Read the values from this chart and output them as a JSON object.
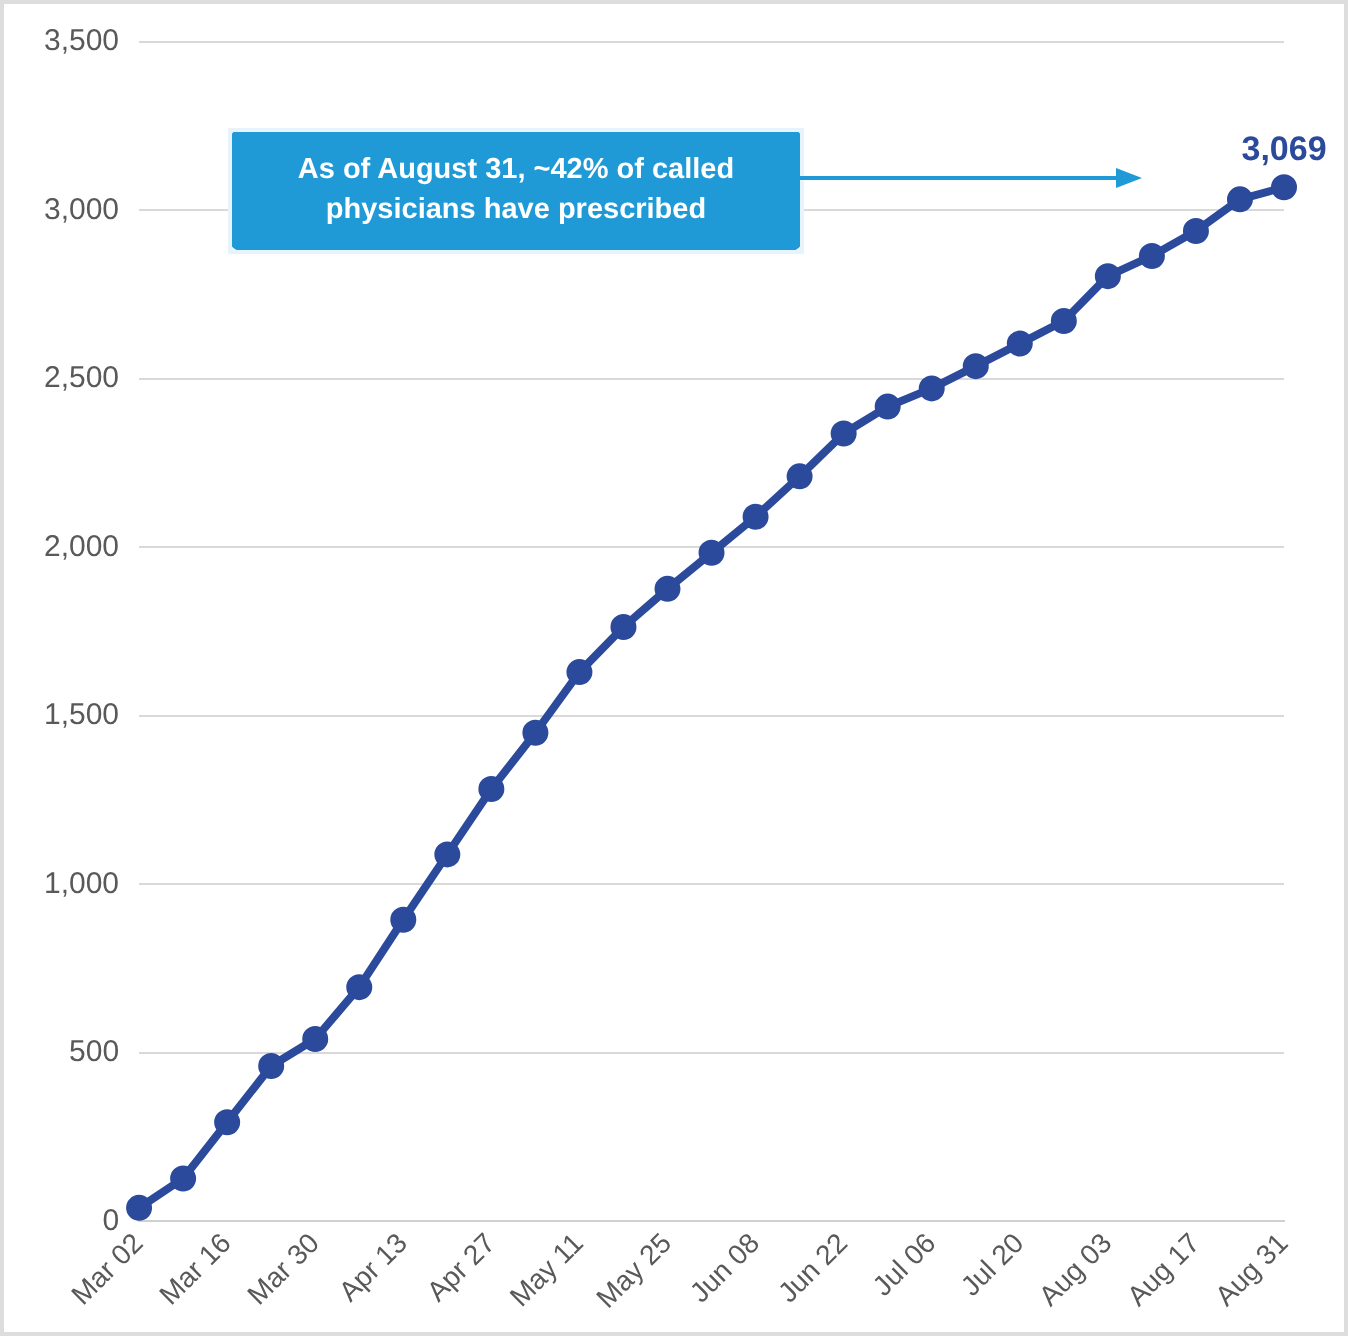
{
  "chart_data": {
    "type": "line",
    "categories": [
      "Mar 02",
      null,
      "Mar 16",
      null,
      "Mar 30",
      null,
      "Apr 13",
      null,
      "Apr 27",
      null,
      "May 11",
      null,
      "May 25",
      null,
      "Jun 08",
      null,
      "Jun 22",
      null,
      "Jul 06",
      null,
      "Jul 20",
      null,
      "Aug 03",
      null,
      "Aug 17",
      null,
      "Aug 31"
    ],
    "series": [
      {
        "color": "#2b4a9b",
        "values": [
          40,
          127,
          294,
          461,
          541,
          695,
          895,
          1089,
          1283,
          1450,
          1630,
          1764,
          1877,
          1984,
          2091,
          2211,
          2338,
          2418,
          2472,
          2538,
          2605,
          2672,
          2805,
          2865,
          2939,
          3033,
          3069
        ],
        "value_labels": [
          null,
          null,
          null,
          null,
          null,
          null,
          null,
          null,
          null,
          null,
          null,
          null,
          null,
          null,
          null,
          null,
          null,
          null,
          null,
          null,
          null,
          null,
          null,
          null,
          null,
          null,
          "3,069"
        ]
      }
    ],
    "ylim": [
      0,
      3500
    ],
    "yticks": [
      0,
      500,
      {
        "value": 1000,
        "label": "1,000"
      },
      {
        "value": 1500,
        "label": "1,500"
      },
      {
        "value": 2000,
        "label": "2,000"
      },
      {
        "value": 2500,
        "label": "2,500"
      },
      {
        "value": 3000,
        "label": "3,000"
      },
      {
        "value": 3500,
        "label": "3,500"
      }
    ],
    "grid": "y",
    "legend": false,
    "marker": "circle",
    "line_style": "solid",
    "annotations": [
      "As of August 31, ~42% of called physicians have prescribed"
    ]
  }
}
